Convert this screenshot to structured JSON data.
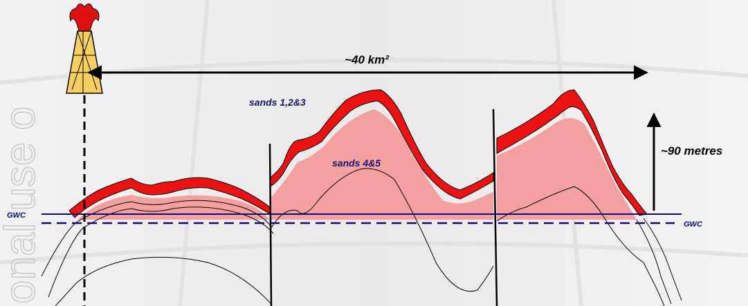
{
  "watermark": "onal use o",
  "labels": {
    "area": "~40 km²",
    "sands_upper": "sands 1,2&3",
    "sands_lower": "sands 4&5",
    "height": "~90 metres",
    "gwc_left": "GWC",
    "gwc_right": "GWC"
  }
}
